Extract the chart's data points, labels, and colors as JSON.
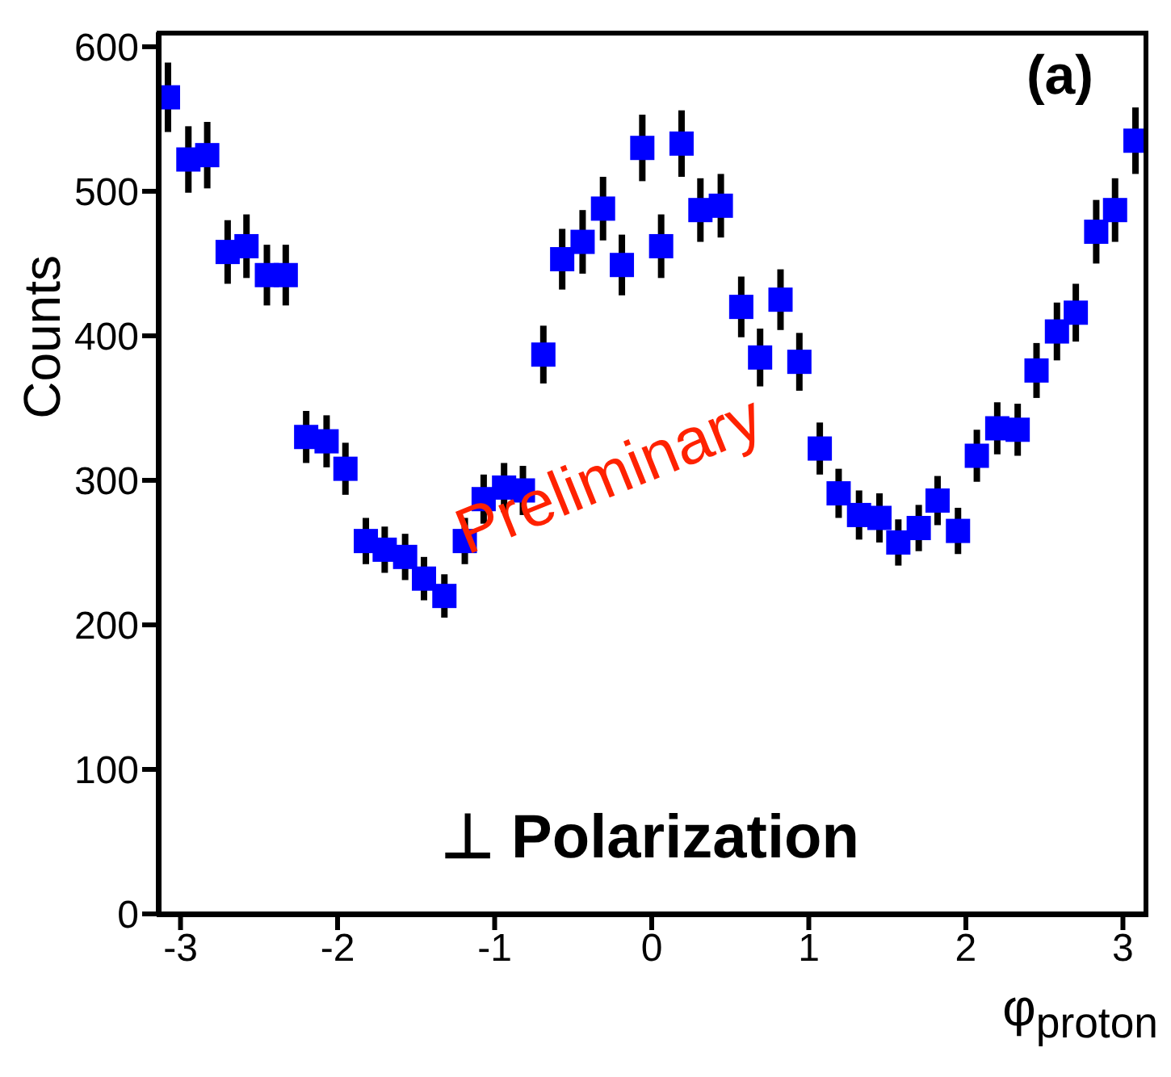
{
  "chart_data": {
    "type": "scatter",
    "xlabel": "φ$_{proton}$",
    "ylabel": "Counts",
    "annotations": [
      "(a)",
      "Preliminary",
      "⊥ Polarization"
    ],
    "x": [
      -3.08,
      -2.95,
      -2.83,
      -2.7,
      -2.58,
      -2.45,
      -2.33,
      -2.2,
      -2.07,
      -1.95,
      -1.82,
      -1.7,
      -1.57,
      -1.45,
      -1.32,
      -1.19,
      -1.07,
      -0.94,
      -0.82,
      -0.69,
      -0.57,
      -0.44,
      -0.31,
      -0.19,
      -0.06,
      0.06,
      0.19,
      0.31,
      0.44,
      0.57,
      0.69,
      0.82,
      0.94,
      1.07,
      1.19,
      1.32,
      1.45,
      1.57,
      1.7,
      1.82,
      1.95,
      2.07,
      2.2,
      2.33,
      2.45,
      2.58,
      2.7,
      2.83,
      2.95,
      3.08
    ],
    "series": [
      {
        "color": "#0000ff",
        "values": [
          565,
          522,
          525,
          458,
          462,
          442,
          442,
          330,
          327,
          308,
          258,
          252,
          247,
          232,
          220,
          258,
          287,
          295,
          293,
          387,
          453,
          465,
          488,
          449,
          530,
          462,
          533,
          487,
          490,
          420,
          385,
          425,
          382,
          322,
          291,
          276,
          274,
          257,
          267,
          286,
          265,
          317,
          336,
          335,
          376,
          403,
          416,
          472,
          487,
          535
        ],
        "errors": [
          24,
          23,
          23,
          22,
          22,
          21,
          21,
          18,
          18,
          18,
          16,
          16,
          16,
          15,
          15,
          16,
          17,
          17,
          17,
          20,
          21,
          22,
          22,
          21,
          23,
          22,
          23,
          22,
          22,
          21,
          20,
          21,
          20,
          18,
          17,
          17,
          17,
          16,
          16,
          17,
          16,
          18,
          18,
          18,
          19,
          20,
          20,
          22,
          22,
          23
        ]
      }
    ],
    "xlim": [
      -3.1416,
      3.1416
    ],
    "ylim": [
      0,
      610
    ],
    "xticks": [
      -3,
      -2,
      -1,
      0,
      1,
      2,
      3
    ],
    "yticks": [
      0,
      100,
      200,
      300,
      400,
      500,
      600
    ],
    "marker": "square",
    "grid": false,
    "legend": false
  }
}
